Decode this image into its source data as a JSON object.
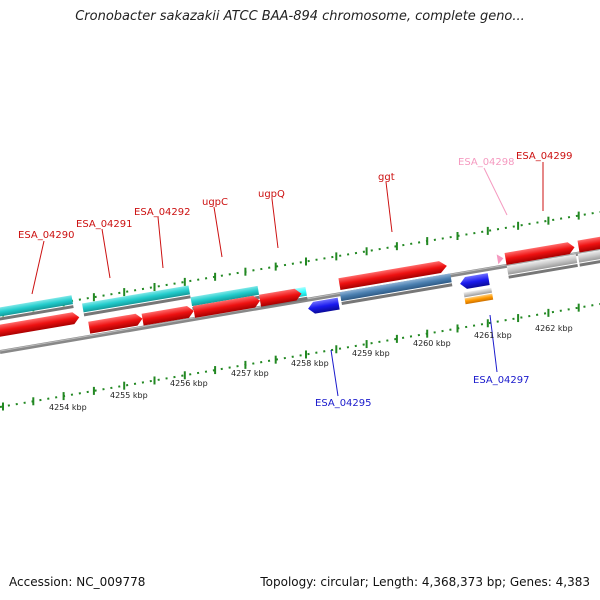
{
  "title": "Cronobacter sakazakii ATCC BAA-894 chromosome, complete geno...",
  "footer": {
    "accession": "Accession: NC_009778",
    "summary": "Topology: circular; Length: 4,368,373 bp; Genes: 4,383"
  },
  "colors": {
    "cds": "#ee1111",
    "gene_cyan": "#22cccc",
    "gene_bright_cyan": "#33ffff",
    "gene_steel": "#4a7fb0",
    "gene_gray": "#c8c8c8",
    "reverse_cds": "#1a1aee",
    "orange": "#ff9900",
    "pink": "#f59ac0",
    "backbone": "#888888",
    "tick": "#228822"
  },
  "kbp_labels": [
    "4254 kbp",
    "4255 kbp",
    "4256 kbp",
    "4257 kbp",
    "4258 kbp",
    "4259 kbp",
    "4260 kbp",
    "4261 kbp",
    "4262 kbp"
  ],
  "gene_labels": [
    {
      "text": "ESA_04290",
      "color": "#cc1111"
    },
    {
      "text": "ESA_04291",
      "color": "#cc1111"
    },
    {
      "text": "ESA_04292",
      "color": "#cc1111"
    },
    {
      "text": "ugpC",
      "color": "#cc1111"
    },
    {
      "text": "ugpQ",
      "color": "#cc1111"
    },
    {
      "text": "ggt",
      "color": "#cc1111"
    },
    {
      "text": "ESA_04298",
      "color": "#f59ac0"
    },
    {
      "text": "ESA_04299",
      "color": "#cc1111"
    },
    {
      "text": "ESA_04295",
      "color": "#1a1acc"
    },
    {
      "text": "ESA_04297",
      "color": "#1a1acc"
    }
  ]
}
